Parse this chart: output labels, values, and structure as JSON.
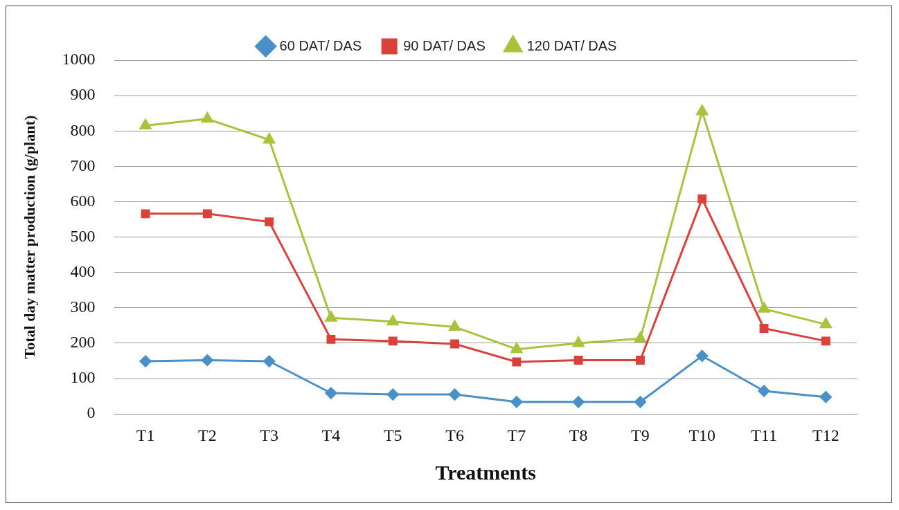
{
  "chart_data": {
    "type": "line",
    "xlabel": "Treatments",
    "ylabel": "Total day matter production (g/plant)",
    "categories": [
      "T1",
      "T2",
      "T3",
      "T4",
      "T5",
      "T6",
      "T7",
      "T8",
      "T9",
      "T10",
      "T11",
      "T12"
    ],
    "series": [
      {
        "name": "60 DAT/ DAS",
        "color": "#4a90c8",
        "marker": "diamond",
        "values": [
          149,
          152,
          149,
          59,
          55,
          55,
          34,
          34,
          34,
          164,
          65,
          48
        ]
      },
      {
        "name": "90 DAT/ DAS",
        "color": "#d9413a",
        "marker": "square",
        "values": [
          566,
          566,
          543,
          211,
          206,
          198,
          147,
          152,
          152,
          608,
          242,
          206
        ]
      },
      {
        "name": "120 DAT/ DAS",
        "color": "#a8c43c",
        "marker": "triangle",
        "values": [
          815,
          834,
          775,
          272,
          261,
          246,
          183,
          200,
          213,
          855,
          297,
          253
        ]
      }
    ],
    "ylim": [
      0,
      1000
    ],
    "yticks": [
      0,
      100,
      200,
      300,
      400,
      500,
      600,
      700,
      800,
      900,
      1000
    ],
    "grid": "y",
    "legend": "top",
    "line_style": "solid"
  }
}
